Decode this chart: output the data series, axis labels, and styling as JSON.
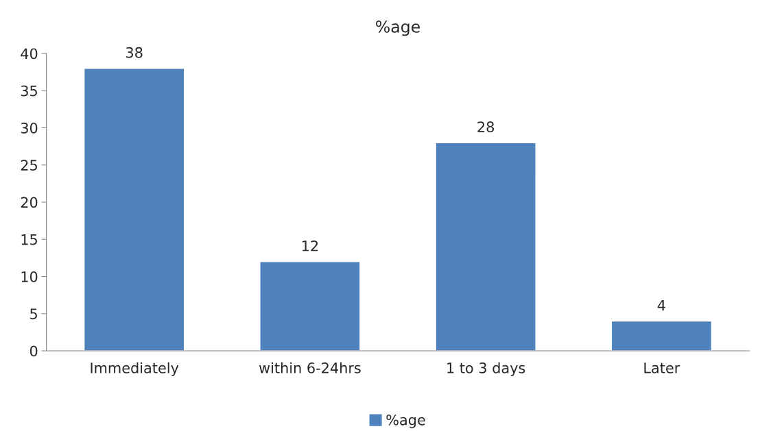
{
  "chart_data": {
    "type": "bar",
    "title": "%age",
    "categories": [
      "Immediately",
      "within 6-24hrs",
      "1 to 3 days",
      "Later"
    ],
    "series": [
      {
        "name": "%age",
        "color": "#4f81bd",
        "values": [
          38,
          12,
          28,
          4
        ]
      }
    ],
    "ylim": [
      0,
      40
    ],
    "yticks": [
      0,
      5,
      10,
      15,
      20,
      25,
      30,
      35,
      40
    ],
    "data_labels": true,
    "legend": "bottom"
  }
}
